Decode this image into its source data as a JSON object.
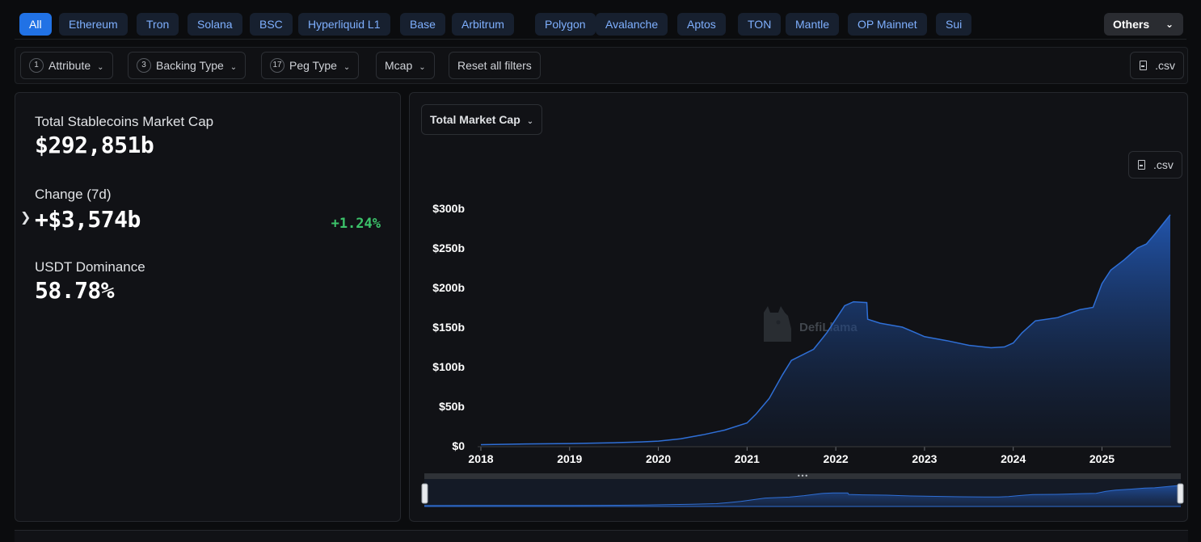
{
  "chains": {
    "items": [
      {
        "label": "All",
        "active": true
      },
      {
        "label": "Ethereum"
      },
      {
        "label": "Tron"
      },
      {
        "label": "Solana"
      },
      {
        "label": "BSC"
      },
      {
        "label": "Hyperliquid L1"
      },
      {
        "label": "Base"
      },
      {
        "label": "Arbitrum"
      },
      {
        "label": "Polygon"
      },
      {
        "label": "Avalanche"
      },
      {
        "label": "Aptos"
      },
      {
        "label": "TON"
      },
      {
        "label": "Mantle"
      },
      {
        "label": "OP Mainnet"
      },
      {
        "label": "Sui"
      }
    ],
    "others_label": "Others"
  },
  "filters": {
    "attribute": {
      "count": "1",
      "label": "Attribute"
    },
    "backing": {
      "count": "3",
      "label": "Backing Type"
    },
    "peg": {
      "count": "17",
      "label": "Peg Type"
    },
    "mcap_label": "Mcap",
    "reset_label": "Reset all filters",
    "csv_label": ".csv"
  },
  "stats": {
    "total_label": "Total Stablecoins Market Cap",
    "total_value": "$292,851b",
    "change_label": "Change (7d)",
    "change_value": "+$3,574b",
    "change_pct": "+1.24%",
    "dominance_label": "USDT Dominance",
    "dominance_value": "58.78%"
  },
  "chart_panel": {
    "metric_label": "Total Market Cap",
    "csv_label": ".csv",
    "watermark": "DefiLlama"
  },
  "chart_data": {
    "type": "area",
    "title": "",
    "xlabel": "",
    "ylabel": "",
    "yticks": [
      "$0",
      "$50b",
      "$100b",
      "$150b",
      "$200b",
      "$250b",
      "$300b"
    ],
    "xticks": [
      "2018",
      "2019",
      "2020",
      "2021",
      "2022",
      "2023",
      "2024",
      "2025"
    ],
    "ylim": [
      0,
      300
    ],
    "xlim": [
      2018.0,
      2025.77
    ],
    "series": [
      {
        "name": "",
        "color": "#2f6fd6",
        "points": [
          [
            2018.0,
            1.5
          ],
          [
            2018.5,
            2.5
          ],
          [
            2019.0,
            3
          ],
          [
            2019.5,
            4
          ],
          [
            2019.8,
            5
          ],
          [
            2020.0,
            6
          ],
          [
            2020.25,
            9
          ],
          [
            2020.5,
            14
          ],
          [
            2020.75,
            20
          ],
          [
            2021.0,
            29
          ],
          [
            2021.1,
            40
          ],
          [
            2021.25,
            60
          ],
          [
            2021.4,
            90
          ],
          [
            2021.5,
            108
          ],
          [
            2021.75,
            122
          ],
          [
            2021.9,
            143
          ],
          [
            2022.0,
            160
          ],
          [
            2022.1,
            177
          ],
          [
            2022.2,
            182
          ],
          [
            2022.35,
            181
          ],
          [
            2022.36,
            160
          ],
          [
            2022.5,
            155
          ],
          [
            2022.75,
            150
          ],
          [
            2022.9,
            143
          ],
          [
            2023.0,
            138
          ],
          [
            2023.25,
            133
          ],
          [
            2023.5,
            127
          ],
          [
            2023.75,
            124
          ],
          [
            2023.9,
            125
          ],
          [
            2024.0,
            130
          ],
          [
            2024.1,
            143
          ],
          [
            2024.25,
            158
          ],
          [
            2024.5,
            162
          ],
          [
            2024.75,
            172
          ],
          [
            2024.9,
            175
          ],
          [
            2025.0,
            205
          ],
          [
            2025.1,
            222
          ],
          [
            2025.25,
            235
          ],
          [
            2025.4,
            250
          ],
          [
            2025.5,
            255
          ],
          [
            2025.6,
            268
          ],
          [
            2025.77,
            292
          ]
        ]
      }
    ],
    "grid": false,
    "legend": "none"
  }
}
